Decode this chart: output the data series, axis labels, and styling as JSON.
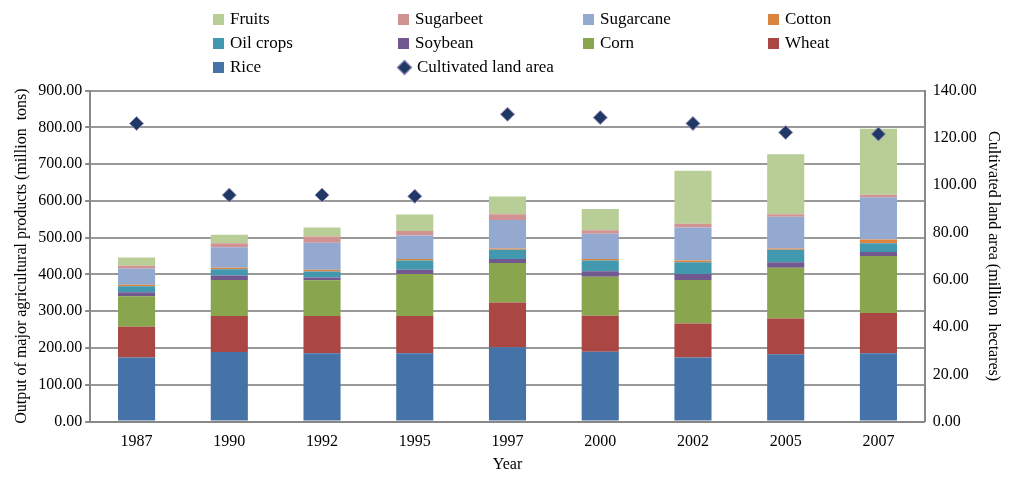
{
  "chart_data": {
    "type": "bar",
    "stacked": true,
    "xlabel": "Year",
    "ylabel": "Output of major agricultural products (million  tons)",
    "y2label": "Cultivated land area (million  hectares)",
    "categories": [
      "1987",
      "1990",
      "1992",
      "1995",
      "1997",
      "2000",
      "2002",
      "2005",
      "2007"
    ],
    "series": [
      {
        "name": "Rice",
        "color": "#4572a7",
        "values": [
          174,
          189,
          186,
          186,
          202,
          190,
          174,
          183,
          186
        ]
      },
      {
        "name": "Wheat",
        "color": "#aa4643",
        "values": [
          84,
          98,
          101,
          101,
          122,
          98,
          93,
          97,
          109
        ]
      },
      {
        "name": "Corn",
        "color": "#89a54e",
        "values": [
          83,
          98,
          97,
          114,
          107,
          106,
          118,
          138,
          155
        ]
      },
      {
        "name": "Soybean",
        "color": "#71588f",
        "values": [
          11,
          12,
          8,
          12,
          11,
          15,
          16,
          15,
          11
        ]
      },
      {
        "name": "Oil crops",
        "color": "#4198af",
        "values": [
          16,
          17,
          16,
          25,
          25,
          29,
          32,
          34,
          24
        ]
      },
      {
        "name": "Cotton",
        "color": "#db843d",
        "values": [
          4,
          4,
          5,
          4,
          4,
          4,
          5,
          4,
          10
        ]
      },
      {
        "name": "Sugarcane",
        "color": "#93a9cf",
        "values": [
          44,
          56,
          73,
          64,
          77,
          69,
          90,
          86,
          115
        ]
      },
      {
        "name": "Sugarbeet",
        "color": "#d19392",
        "values": [
          8,
          11,
          17,
          12,
          16,
          9,
          10,
          7,
          7
        ]
      },
      {
        "name": "Fruits",
        "color": "#b9cd96",
        "values": [
          22,
          23,
          25,
          45,
          48,
          58,
          144,
          163,
          179
        ]
      },
      {
        "name": "Cultivated land area",
        "type": "scatter",
        "axis": "y2",
        "color": "#1f3864",
        "values": [
          126.1,
          95.8,
          95.8,
          95.3,
          130,
          128.6,
          126.1,
          122.3,
          121.6
        ]
      }
    ],
    "ylim": [
      0,
      900
    ],
    "yticks": [
      {
        "value": 0,
        "label": "0.00"
      },
      {
        "value": 100,
        "label": "100.00"
      },
      {
        "value": 200,
        "label": "200.00"
      },
      {
        "value": 300,
        "label": "300.00"
      },
      {
        "value": 400,
        "label": "400.00"
      },
      {
        "value": 500,
        "label": "500.00"
      },
      {
        "value": 600,
        "label": "600.00"
      },
      {
        "value": 700,
        "label": "700.00"
      },
      {
        "value": 800,
        "label": "800.00"
      },
      {
        "value": 900,
        "label": "900.00"
      }
    ],
    "y2lim": [
      0,
      140
    ],
    "y2ticks": [
      {
        "value": 0,
        "label": "0.00"
      },
      {
        "value": 20,
        "label": "20.00"
      },
      {
        "value": 40,
        "label": "40.00"
      },
      {
        "value": 60,
        "label": "60.00"
      },
      {
        "value": 80,
        "label": "80.00"
      },
      {
        "value": 100,
        "label": "100.00"
      },
      {
        "value": 120,
        "label": "120.00"
      },
      {
        "value": 140,
        "label": "140.00"
      }
    ],
    "grid": "y",
    "legend": "top",
    "marker": "diamond"
  }
}
